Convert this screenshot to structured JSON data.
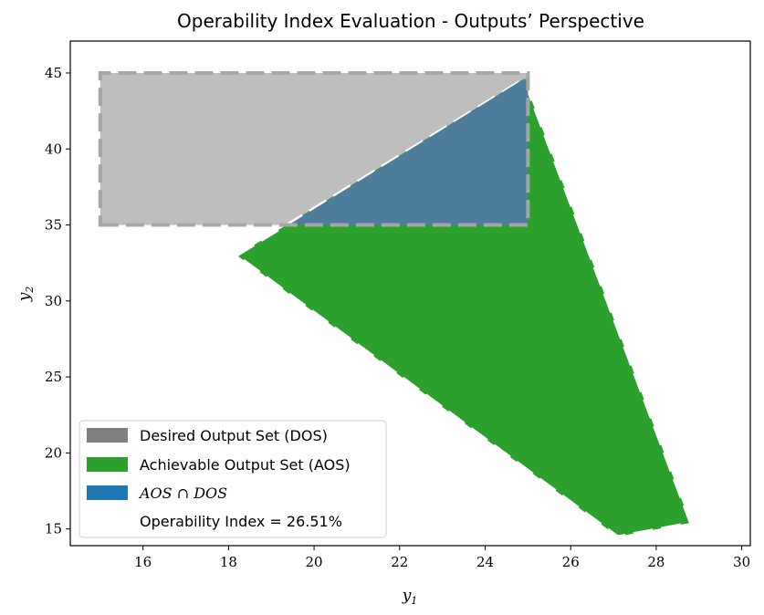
{
  "chart_data": {
    "type": "area",
    "title": "Operability Index Evaluation - Outputs’ Perspective",
    "xlabel": "y1",
    "ylabel": "y2",
    "xlim": [
      14.3,
      30.2
    ],
    "ylim": [
      13.9,
      47.1
    ],
    "xticks": [
      16,
      18,
      20,
      22,
      24,
      26,
      28,
      30
    ],
    "yticks": [
      15,
      20,
      25,
      30,
      35,
      40,
      45
    ],
    "grid": false,
    "legend_position": "lower-left",
    "series": [
      {
        "name": "Desired Output Set (DOS)",
        "color": "#808080",
        "polygon": [
          [
            15,
            35
          ],
          [
            25,
            35
          ],
          [
            25,
            45
          ],
          [
            15,
            45
          ]
        ]
      },
      {
        "name": "Achievable Output Set (AOS)",
        "color": "#2ca02c",
        "polygon": [
          [
            18.2,
            33.0
          ],
          [
            24.9,
            44.6
          ],
          [
            28.8,
            15.4
          ],
          [
            27.1,
            14.5
          ]
        ]
      },
      {
        "name": "AOS ∩ DOS",
        "color": "#1f77b4",
        "polygon": [
          [
            19.4,
            35.0
          ],
          [
            25.0,
            35.0
          ],
          [
            25.0,
            44.6
          ],
          [
            24.9,
            44.6
          ]
        ]
      }
    ],
    "annotation": "Operability Index = 26.51%"
  }
}
